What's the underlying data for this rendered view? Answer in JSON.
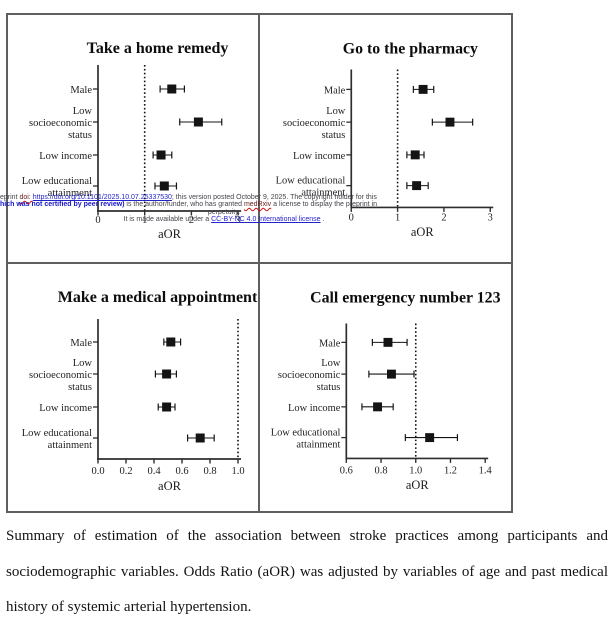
{
  "colors": {
    "marker": "#141414",
    "axis": "#2e2e2e",
    "panel_border": "#5f5f5f",
    "link_blue": "#2323cc",
    "watermark_blue_bold": "#1616c8",
    "watermark_red": "#cc1212",
    "text": "#141414"
  },
  "watermark": {
    "line1_parts": [
      {
        "text": "eprint ",
        "style": "plain"
      },
      {
        "text": "doi: ",
        "style": "red_wavy"
      },
      {
        "text": "https://doi.org/10.1101/2025.10.07.25337530",
        "style": "link"
      },
      {
        "text": "; this version posted October 9, 2025. The copyright holder for this",
        "style": "plain"
      }
    ],
    "line2_parts": [
      {
        "text": "hich was not certified by peer review)",
        "style": "blue_bold"
      },
      {
        "text": " is the author/funder, who has granted ",
        "style": "plain"
      },
      {
        "text": "medRxiv",
        "style": "red_wavy"
      },
      {
        "text": " a license to display the preprint in",
        "style": "plain"
      }
    ],
    "line3": "perpetuity.",
    "line4_parts": [
      {
        "text": "It is made available under a ",
        "style": "plain"
      },
      {
        "text": "CC-BY-NC 4.0 International license",
        "style": "link"
      },
      {
        "text": " .",
        "style": "plain"
      }
    ]
  },
  "chart_data": [
    {
      "type": "scatter",
      "subtype": "forest-plot",
      "title": "Take a home remedy",
      "xlabel": "aOR",
      "grid": false,
      "legend": "none",
      "categories": [
        [
          "Male"
        ],
        [
          "Low",
          "socioeconomic",
          "status"
        ],
        [
          "Low income"
        ],
        [
          "Low educational",
          "attainment"
        ]
      ],
      "points": [
        {
          "label": "Male",
          "aor": 1.58,
          "ci_low": 1.33,
          "ci_high": 1.85
        },
        {
          "label": "Low socioeconomic status",
          "aor": 2.15,
          "ci_low": 1.75,
          "ci_high": 2.65
        },
        {
          "label": "Low income",
          "aor": 1.35,
          "ci_low": 1.18,
          "ci_high": 1.58
        },
        {
          "label": "Low educational attainment",
          "aor": 1.42,
          "ci_low": 1.22,
          "ci_high": 1.68
        }
      ],
      "xlim": [
        0,
        3
      ],
      "xticks": [
        "0",
        "1",
        "2",
        "3"
      ],
      "xtick_values": [
        0,
        1,
        2,
        3
      ],
      "refline": 1,
      "note": "x tick labels obscured by watermark text"
    },
    {
      "type": "scatter",
      "subtype": "forest-plot",
      "title": "Go to the pharmacy",
      "xlabel": "aOR",
      "grid": false,
      "legend": "none",
      "categories": [
        [
          "Male"
        ],
        [
          "Low",
          "socioeconomic",
          "status"
        ],
        [
          "Low income"
        ],
        [
          "Low educational",
          "attainment"
        ]
      ],
      "points": [
        {
          "label": "Male",
          "aor": 1.55,
          "ci_low": 1.34,
          "ci_high": 1.78
        },
        {
          "label": "Low socioeconomic status",
          "aor": 2.13,
          "ci_low": 1.75,
          "ci_high": 2.62
        },
        {
          "label": "Low income",
          "aor": 1.38,
          "ci_low": 1.2,
          "ci_high": 1.57
        },
        {
          "label": "Low educational attainment",
          "aor": 1.41,
          "ci_low": 1.2,
          "ci_high": 1.66
        }
      ],
      "xlim": [
        0,
        3
      ],
      "xticks": [
        "0",
        "1",
        "2",
        "3"
      ],
      "xtick_values": [
        0,
        1,
        2,
        3
      ],
      "refline": 1
    },
    {
      "type": "scatter",
      "subtype": "forest-plot",
      "title": "Make a medical appointment",
      "xlabel": "aOR",
      "grid": false,
      "legend": "none",
      "categories": [
        [
          "Male"
        ],
        [
          "Low",
          "socioeconomic",
          "status"
        ],
        [
          "Low income"
        ],
        [
          "Low educational",
          "attainment"
        ]
      ],
      "points": [
        {
          "label": "Male",
          "aor": 0.52,
          "ci_low": 0.47,
          "ci_high": 0.59
        },
        {
          "label": "Low socioeconomic status",
          "aor": 0.49,
          "ci_low": 0.41,
          "ci_high": 0.56
        },
        {
          "label": "Low income",
          "aor": 0.49,
          "ci_low": 0.43,
          "ci_high": 0.55
        },
        {
          "label": "Low educational attainment",
          "aor": 0.73,
          "ci_low": 0.64,
          "ci_high": 0.83
        }
      ],
      "xlim": [
        0,
        1.0
      ],
      "xticks": [
        "0.0",
        "0.2",
        "0.4",
        "0.6",
        "0.8",
        "1.0"
      ],
      "xtick_values": [
        0,
        0.2,
        0.4,
        0.6,
        0.8,
        1.0
      ],
      "refline": 1.0
    },
    {
      "type": "scatter",
      "subtype": "forest-plot",
      "title": "Call emergency number 123",
      "xlabel": "aOR",
      "grid": false,
      "legend": "none",
      "categories": [
        [
          "Male"
        ],
        [
          "Low",
          "socioeconomic",
          "status"
        ],
        [
          "Low income"
        ],
        [
          "Low educational",
          "attainment"
        ]
      ],
      "points": [
        {
          "label": "Male",
          "aor": 0.84,
          "ci_low": 0.75,
          "ci_high": 0.95
        },
        {
          "label": "Low socioeconomic status",
          "aor": 0.86,
          "ci_low": 0.73,
          "ci_high": 0.99
        },
        {
          "label": "Low income",
          "aor": 0.78,
          "ci_low": 0.69,
          "ci_high": 0.87
        },
        {
          "label": "Low educational attainment",
          "aor": 1.08,
          "ci_low": 0.94,
          "ci_high": 1.24
        }
      ],
      "xlim": [
        0.6,
        1.4
      ],
      "xticks": [
        "0.6",
        "0.8",
        "1.0",
        "1.2",
        "1.4"
      ],
      "xtick_values": [
        0.6,
        0.8,
        1.0,
        1.2,
        1.4
      ],
      "refline": 1.0
    }
  ],
  "caption": {
    "lines": [
      "Summary of estimation of the association between stroke practices among participants and",
      "sociodemographic variables. Odds Ratio (aOR) was adjusted by variables of age and past medical",
      "history of systemic arterial hypertension."
    ]
  }
}
